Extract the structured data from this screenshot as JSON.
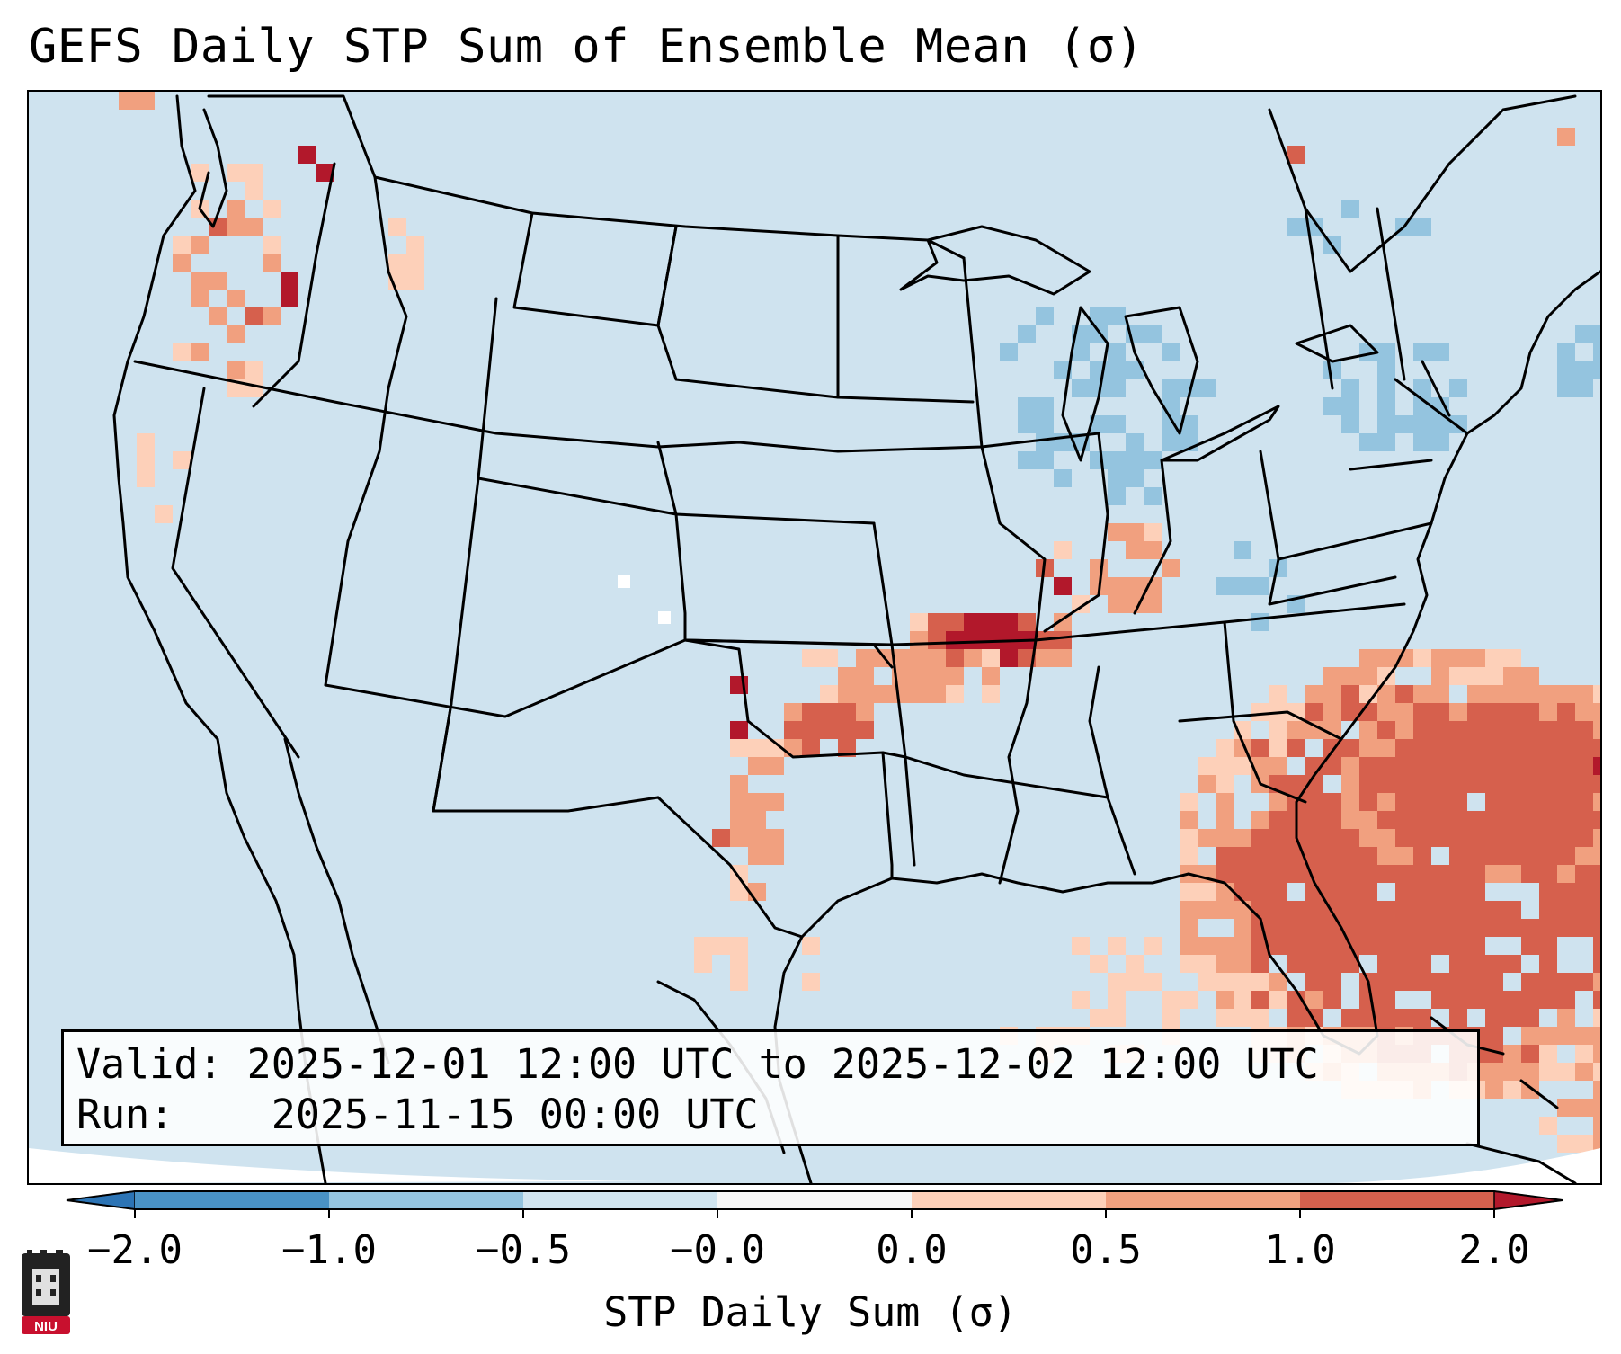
{
  "title": "GEFS Daily STP Sum of Ensemble Mean (σ)",
  "info": {
    "valid_label": "Valid:",
    "valid_value": "2025-12-01 12:00 UTC to 2025-12-02 12:00 UTC",
    "run_label": "Run:",
    "run_value": "2025-11-15 00:00 UTC"
  },
  "colorbar": {
    "label": "STP Daily Sum (σ)",
    "tick_labels": [
      "−2.0",
      "−1.0",
      "−0.5",
      "−0.0",
      "0.0",
      "0.5",
      "1.0",
      "2.0"
    ],
    "colors": [
      "#2c74b5",
      "#4a93c6",
      "#94c4df",
      "#d1e5f0",
      "#f7f7f7",
      "#fdd0b9",
      "#f1a07f",
      "#d6604d",
      "#b2182b"
    ],
    "extend": "both"
  },
  "map": {
    "projection": "Lambert conformal, contiguous US",
    "background_color": "#cfe3ef",
    "field": "STP daily sum anomaly of ensemble mean",
    "highlighted_regions": [
      {
        "area": "Southern Missouri / Arkansas border",
        "category": "2.0"
      },
      {
        "area": "Western Atlantic east of Florida",
        "category": "1.0"
      },
      {
        "area": "Ohio Valley",
        "category": "0.5"
      },
      {
        "area": "Eastern Washington / northern Idaho",
        "category": "2.0"
      },
      {
        "area": "Great Lakes and Northeast",
        "category": "-0.5"
      }
    ]
  },
  "logo": {
    "text": "NIU"
  }
}
